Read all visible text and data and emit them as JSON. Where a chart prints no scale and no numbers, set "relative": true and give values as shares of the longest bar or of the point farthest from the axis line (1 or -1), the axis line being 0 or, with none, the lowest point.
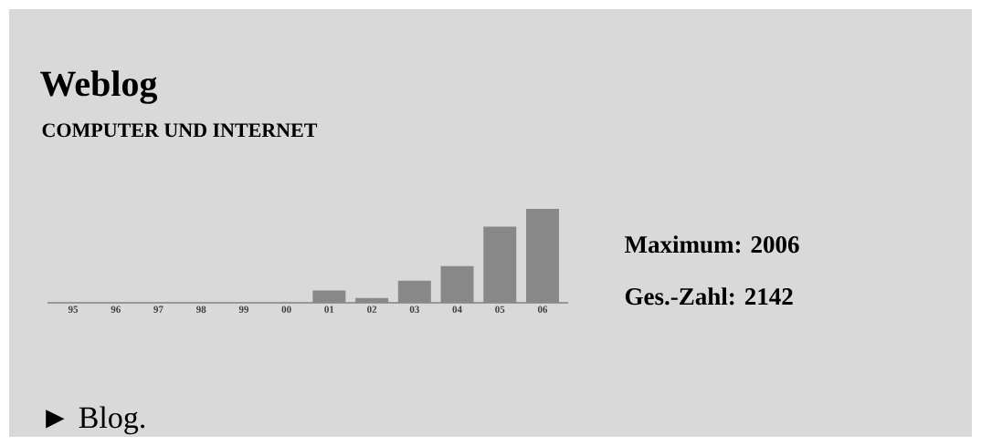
{
  "chart_data": {
    "type": "bar",
    "title": "Weblog",
    "subtitle": "COMPUTER UND INTERNET",
    "categories": [
      "95",
      "96",
      "97",
      "98",
      "99",
      "00",
      "01",
      "02",
      "03",
      "04",
      "05",
      "06"
    ],
    "values": [
      0,
      0,
      0,
      0,
      0,
      0,
      0.13,
      0.05,
      0.235,
      0.39,
      0.81,
      1
    ],
    "color": "#888888",
    "relative": true,
    "annotations": [
      "Maximum: 2006",
      "Ges.-Zahl: 2142",
      "► Blog."
    ]
  }
}
